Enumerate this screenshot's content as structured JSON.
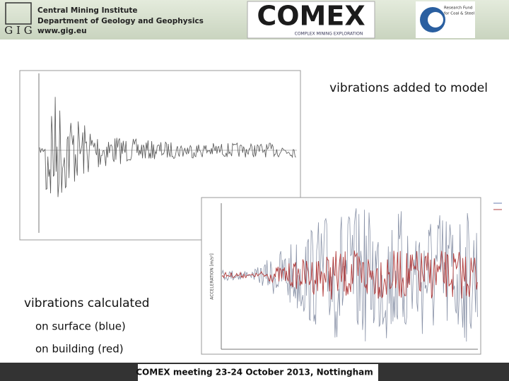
{
  "header": {
    "institute": [
      "Central Mining Institute",
      "Department of Geology and Geophysics",
      "www.gig.eu"
    ],
    "logo_gig": "G I G",
    "logo_comex": "COMEX",
    "logo_comex_sub": "COMPLEX MINING EXPLORATION",
    "logo_rfcs": [
      "Research Fund",
      "for Coal & Steel"
    ]
  },
  "content": {
    "caption_top": "vibrations added to model",
    "caption_bottom": [
      "vibrations calculated",
      "on surface (blue)",
      "on building (red)"
    ],
    "plot2_ylabel": "ACCELERATION [m/s²]"
  },
  "footer": {
    "text": "COMEX meeting 23-24 October 2013, Nottingham"
  }
}
